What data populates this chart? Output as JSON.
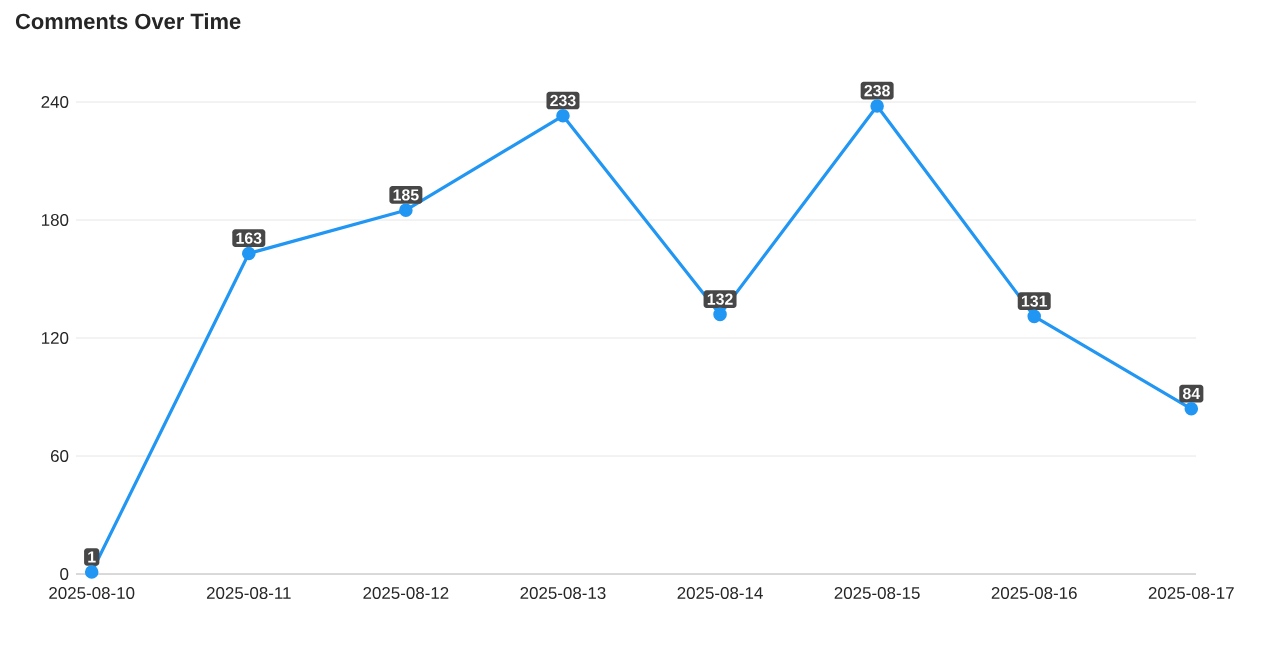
{
  "chart_data": {
    "type": "line",
    "title": "Comments Over Time",
    "categories": [
      "2025-08-10",
      "2025-08-11",
      "2025-08-12",
      "2025-08-13",
      "2025-08-14",
      "2025-08-15",
      "2025-08-16",
      "2025-08-17"
    ],
    "values": [
      1,
      163,
      185,
      233,
      132,
      238,
      131,
      84
    ],
    "color": "#2196f3",
    "ylim": [
      0,
      240
    ],
    "yticks": [
      0,
      60,
      120,
      180,
      240
    ],
    "grid": "y",
    "marker": "circle",
    "line_style": "solid",
    "data_labels": true
  }
}
